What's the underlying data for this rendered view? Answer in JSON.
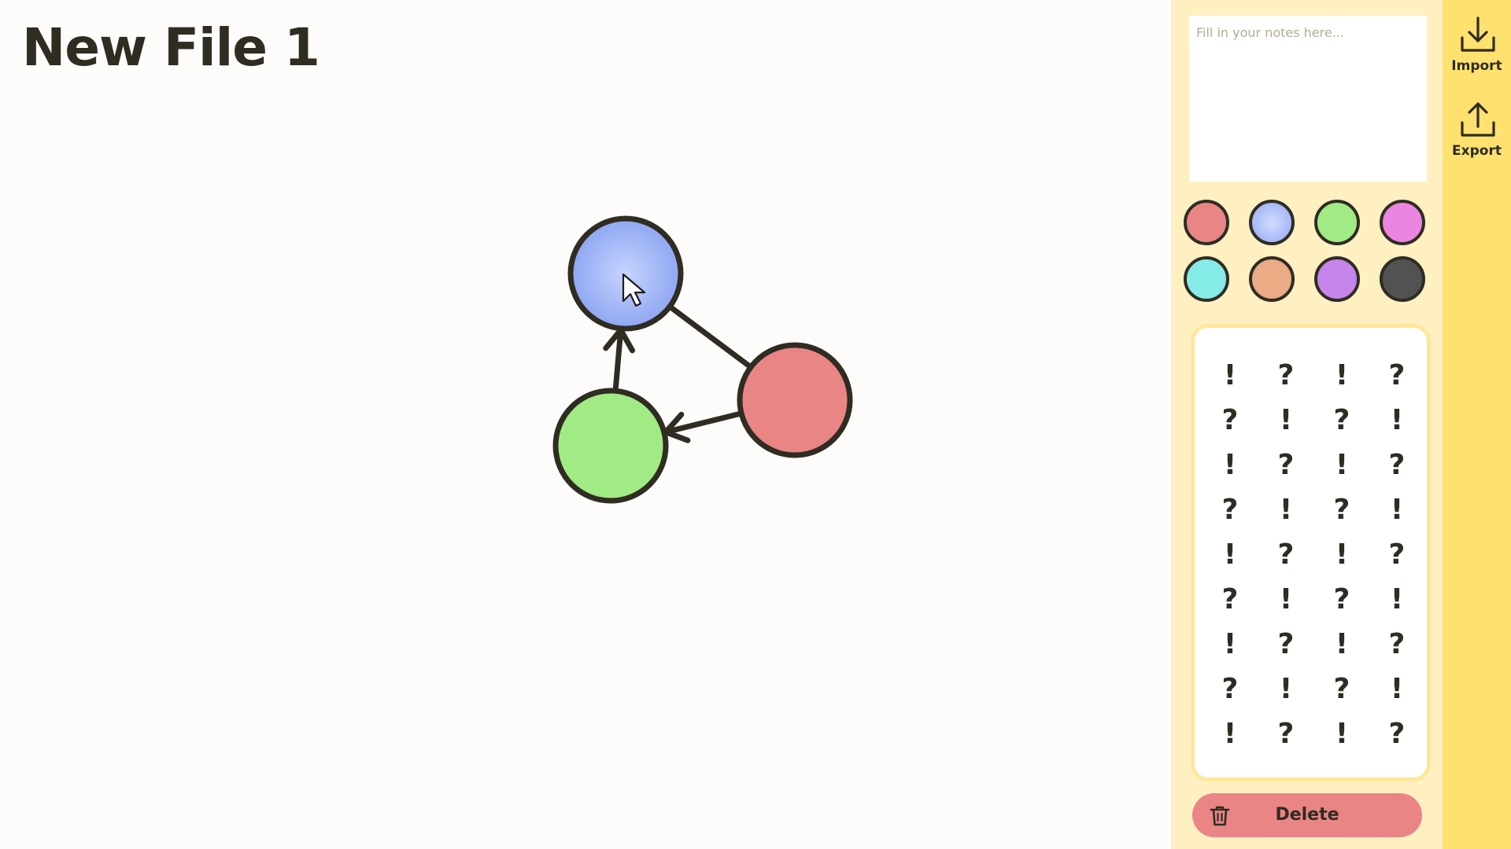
{
  "document": {
    "title": "New File 1"
  },
  "canvas": {
    "nodes": [
      {
        "id": "blue",
        "color": "#8fa7f2"
      },
      {
        "id": "red",
        "color": "#ea8585"
      },
      {
        "id": "green",
        "color": "#a1eb85"
      }
    ],
    "edges": [
      {
        "from": "blue",
        "to": "red",
        "directed": false
      },
      {
        "from": "red",
        "to": "green",
        "directed": true
      },
      {
        "from": "green",
        "to": "blue",
        "directed": true
      }
    ],
    "selected_node": "blue"
  },
  "notes": {
    "placeholder": "Fill in your notes here...",
    "value": ""
  },
  "palette": {
    "colors": [
      "#ea8585",
      "#9fb2f5",
      "#a1eb85",
      "#ea85e0",
      "#85ebe6",
      "#eaab85",
      "#c585ea",
      "#525252"
    ],
    "selected": 1
  },
  "tokens": [
    [
      "!",
      "?",
      "!",
      "?"
    ],
    [
      "?",
      "!",
      "?",
      "!"
    ],
    [
      "!",
      "?",
      "!",
      "?"
    ],
    [
      "?",
      "!",
      "?",
      "!"
    ],
    [
      "!",
      "?",
      "!",
      "?"
    ],
    [
      "?",
      "!",
      "?",
      "!"
    ],
    [
      "!",
      "?",
      "!",
      "?"
    ],
    [
      "?",
      "!",
      "?",
      "!"
    ],
    [
      "!",
      "?",
      "!",
      "?"
    ]
  ],
  "actions": {
    "delete_label": "Delete"
  },
  "toolbar": {
    "import_label": "Import",
    "export_label": "Export"
  },
  "theme": {
    "panel_bg": "#fff0c2",
    "toolbar_bg": "#ffe170",
    "ink": "#2f2c22",
    "token_border": "#ffe79a",
    "delete_bg": "#ea8585"
  }
}
